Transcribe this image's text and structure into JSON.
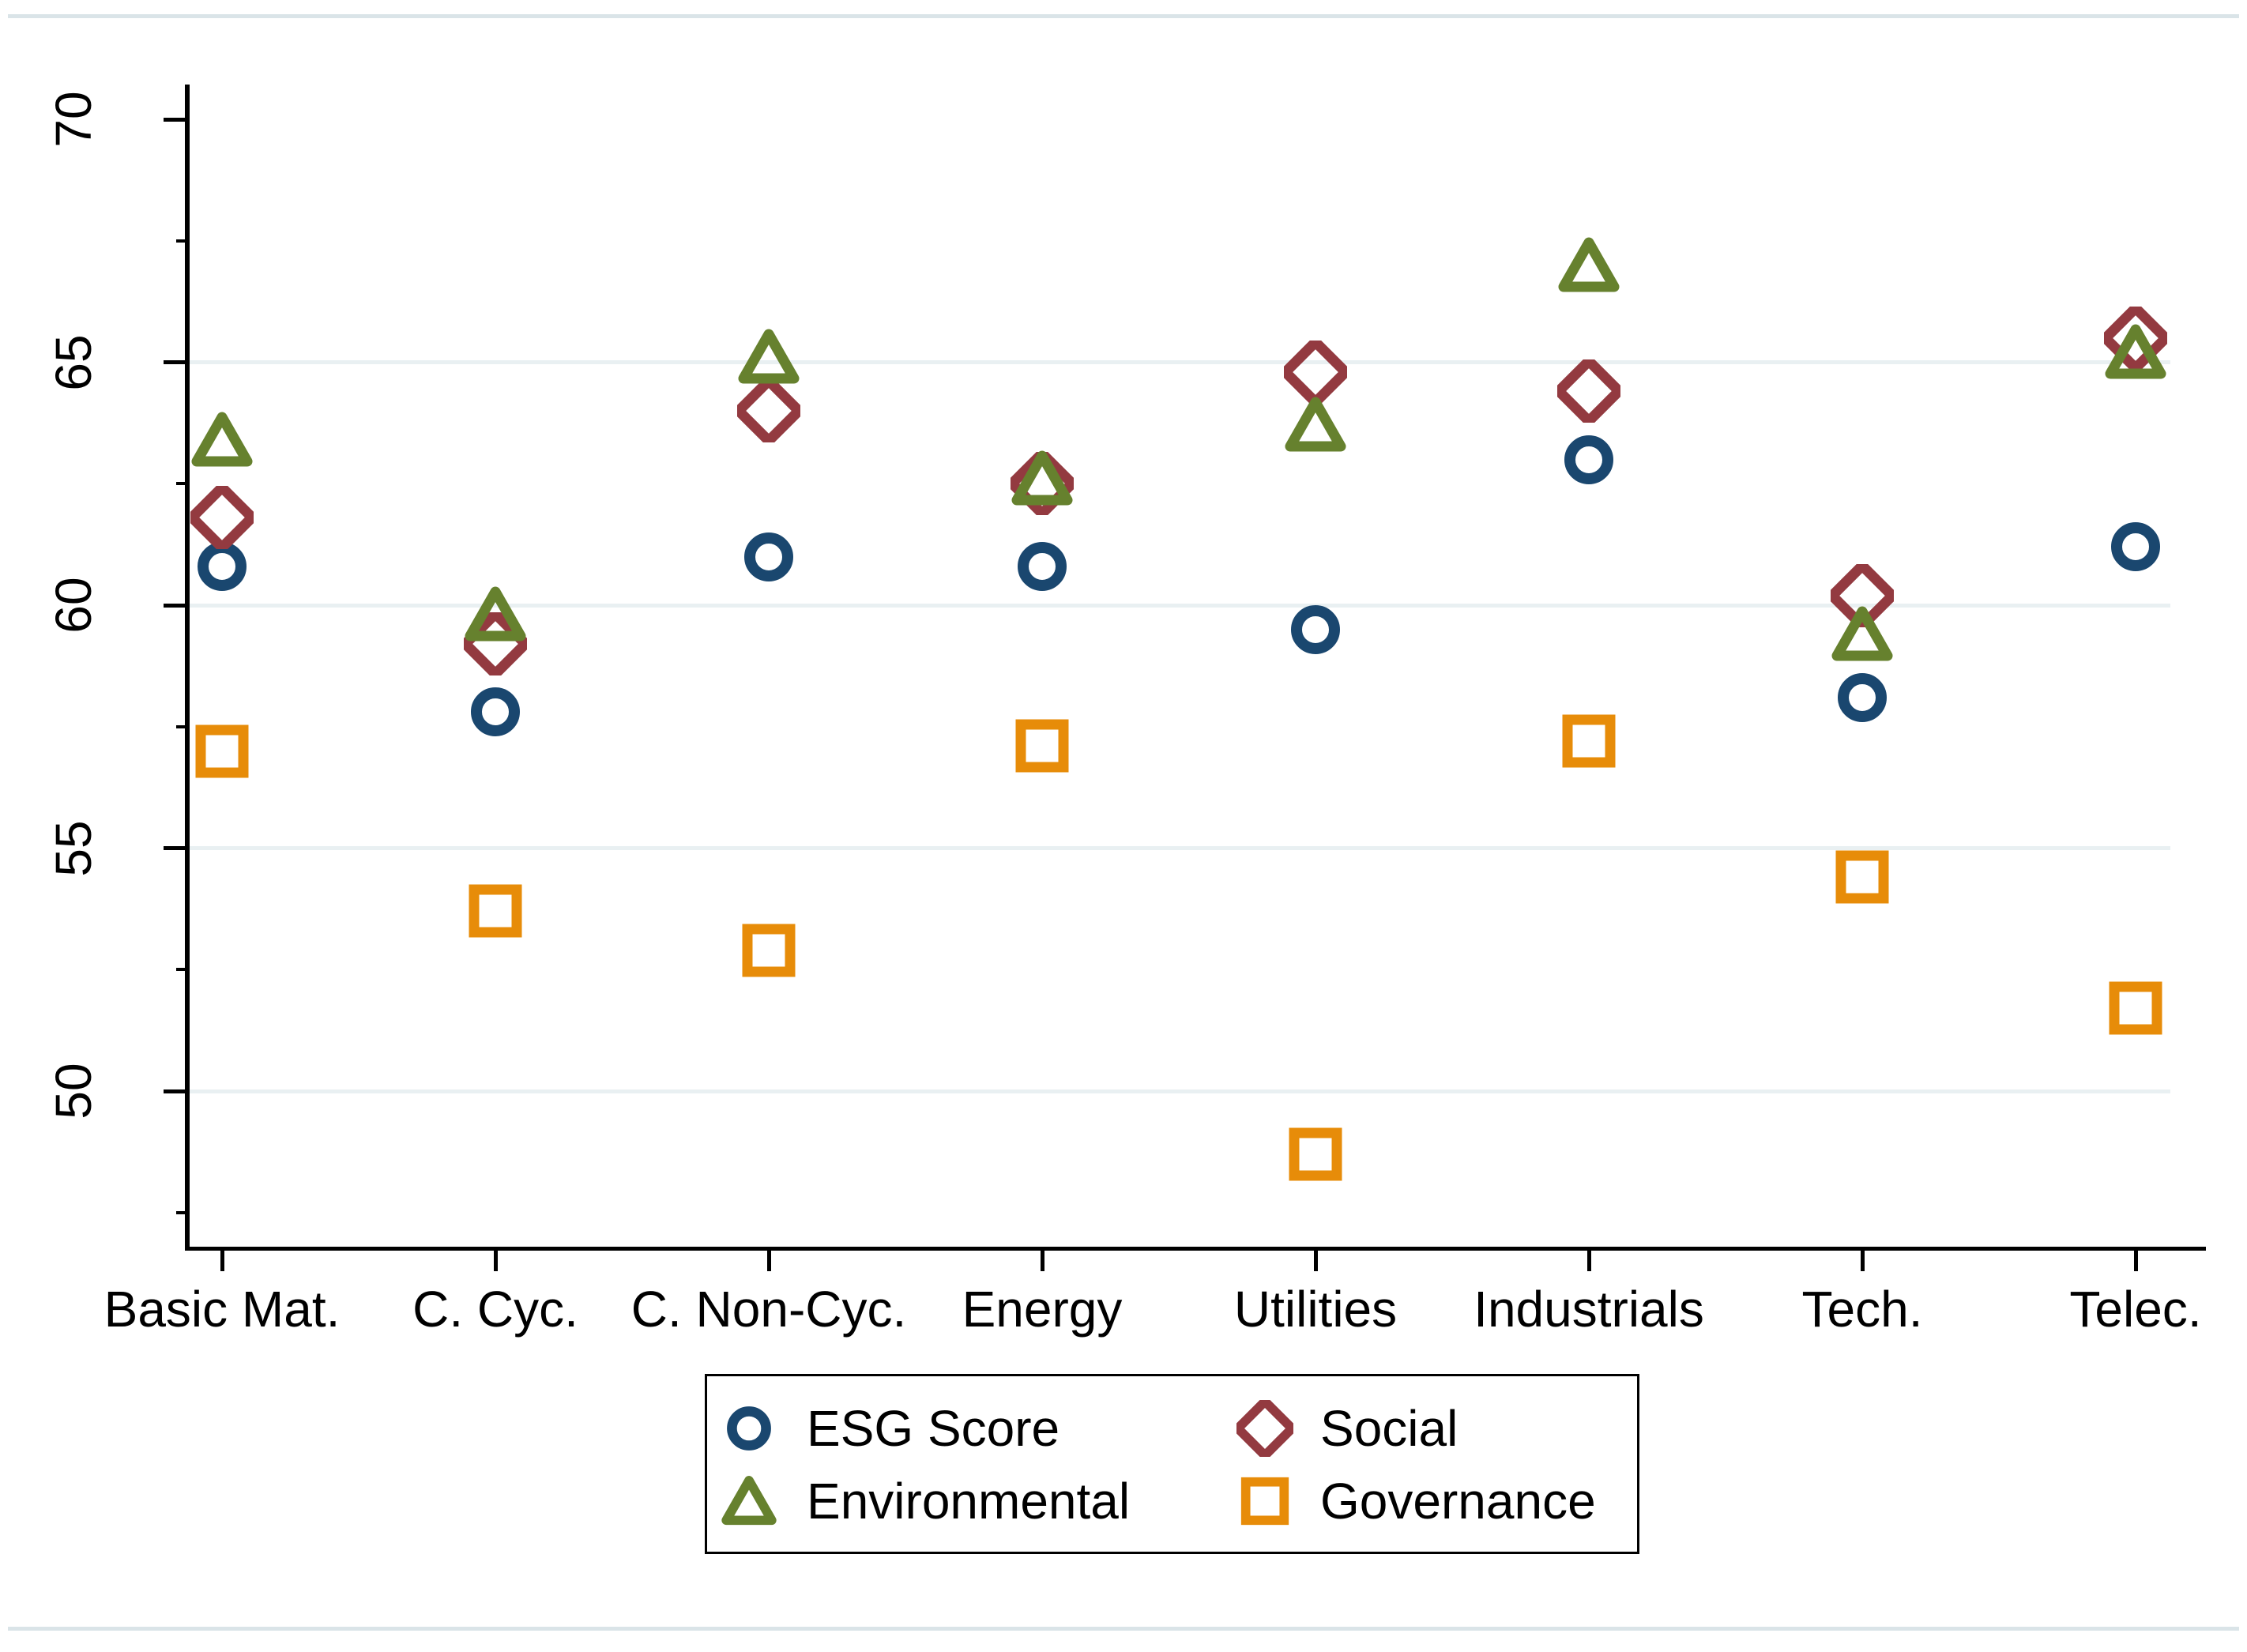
{
  "chart_data": {
    "type": "scatter",
    "title": "",
    "xlabel": "",
    "ylabel": "",
    "categories": [
      "Basic Mat.",
      "C. Cyc.",
      "C. Non-Cyc.",
      "Energy",
      "Utilities",
      "Industrials",
      "Tech.",
      "Telec."
    ],
    "series": [
      {
        "name": "ESG Score",
        "marker": "circle",
        "color": "#1a476f",
        "values": [
          60.8,
          57.8,
          61.0,
          60.8,
          59.5,
          63.0,
          58.1,
          61.2
        ]
      },
      {
        "name": "Social",
        "marker": "diamond",
        "color": "#933a40",
        "values": [
          61.8,
          59.2,
          64.0,
          62.5,
          64.8,
          64.4,
          60.2,
          65.5
        ]
      },
      {
        "name": "Environmental",
        "marker": "triangle",
        "color": "#66812e",
        "values": [
          63.4,
          59.8,
          65.1,
          62.6,
          63.7,
          67.0,
          59.4,
          65.2
        ]
      },
      {
        "name": "Governance",
        "marker": "square",
        "color": "#e78c09",
        "values": [
          57.0,
          53.7,
          52.9,
          57.1,
          48.7,
          57.2,
          54.4,
          51.7
        ]
      }
    ],
    "y_axis": {
      "major_tick_labels": [
        "50",
        "55",
        "60",
        "65",
        "70"
      ],
      "major_ticks": [
        50,
        55,
        60,
        65,
        70
      ],
      "minor_ticks": [
        47.5,
        52.5,
        57.5,
        62.5,
        67.5
      ],
      "gridlines_at": [
        50,
        55,
        60,
        65
      ],
      "range": [
        46.8,
        70.6
      ],
      "grid_color": "#e9f0f2"
    },
    "legend": {
      "position": "bottom-center",
      "border_color": "#000000",
      "items": [
        {
          "label": "ESG Score",
          "marker": "circle",
          "color": "#1a476f"
        },
        {
          "label": "Social",
          "marker": "diamond",
          "color": "#933a40"
        },
        {
          "label": "Environmental",
          "marker": "triangle",
          "color": "#66812e"
        },
        {
          "label": "Governance",
          "marker": "square",
          "color": "#e78c09"
        }
      ]
    },
    "layout_hints": {
      "grid": "horizontal-only",
      "y_tick_label_rotation_deg": 90,
      "frame_line_color": "#dae4e8"
    }
  }
}
